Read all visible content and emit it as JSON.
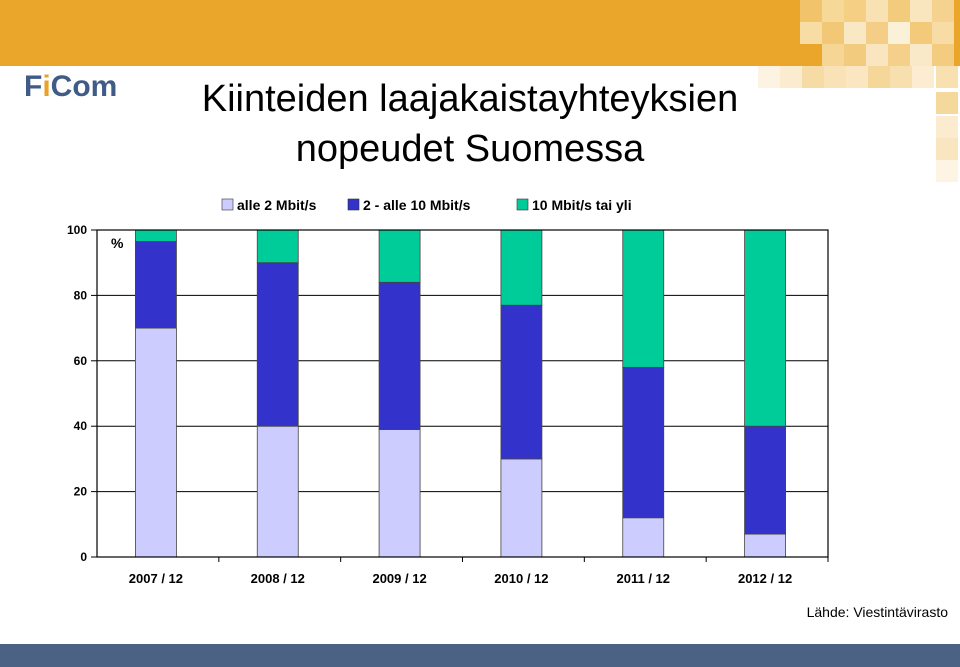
{
  "header": {
    "logo_part1": "F",
    "logo_part2": "i",
    "logo_part3": "Com",
    "title_line1": "Kiinteiden  laajakaistayhteyksien",
    "title_line2": "nopeudet  Suomessa"
  },
  "footer": {
    "source": "Lähde:  Viestintävirasto"
  },
  "colors": {
    "band_top": "#eaa62a",
    "band_bottom": "#4c6285",
    "series": [
      "#ccccff",
      "#3333cc",
      "#00cc99"
    ]
  },
  "chart_data": {
    "type": "bar",
    "stacked": true,
    "title": "",
    "xlabel": "",
    "ylabel": "%",
    "ylim": [
      0,
      100
    ],
    "yticks": [
      0,
      20,
      40,
      60,
      80,
      100
    ],
    "grid": true,
    "legend_position": "top",
    "categories": [
      "2007 / 12",
      "2008 / 12",
      "2009 / 12",
      "2010 / 12",
      "2011 / 12",
      "2012 / 12"
    ],
    "series": [
      {
        "name": "alle 2 Mbit/s",
        "values": [
          70,
          40,
          39,
          30,
          12,
          7
        ]
      },
      {
        "name": "2 - alle 10 Mbit/s",
        "values": [
          26.5,
          50,
          45,
          47,
          46,
          33
        ]
      },
      {
        "name": "10 Mbit/s tai yli",
        "values": [
          3.5,
          10,
          16,
          23,
          42,
          60
        ]
      }
    ]
  }
}
